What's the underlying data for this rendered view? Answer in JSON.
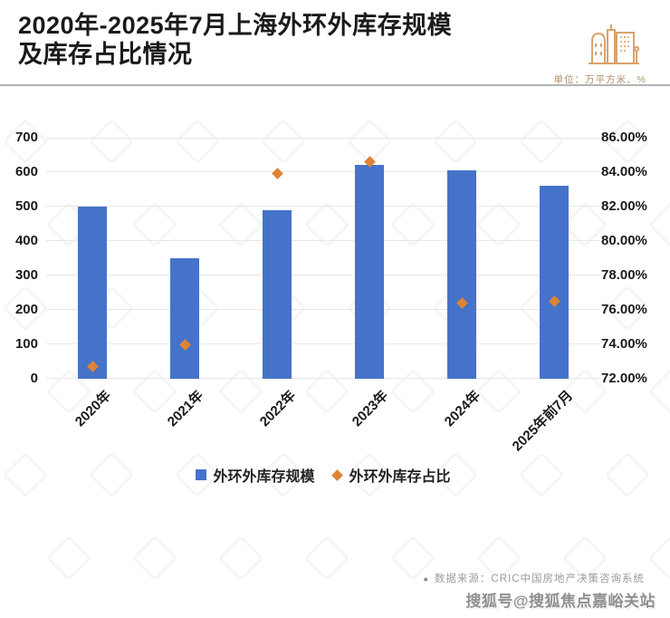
{
  "header": {
    "title_line1": "2020年-2025年7月上海外环外库存规模",
    "title_line2": "及库存占比情况",
    "unit_label": "单位：万平方米、%"
  },
  "chart_data": {
    "type": "bar",
    "title": "2020年-2025年7月上海外环外库存规模及库存占比情况",
    "categories": [
      "2020年",
      "2021年",
      "2022年",
      "2023年",
      "2024年",
      "2025年前7月"
    ],
    "series": [
      {
        "name": "外环外库存规模",
        "type": "bar",
        "axis": "left",
        "unit": "万平方米",
        "values": [
          500,
          350,
          490,
          620,
          605,
          560
        ]
      },
      {
        "name": "外环外库存占比",
        "type": "scatter",
        "axis": "right",
        "unit": "%",
        "values": [
          72.7,
          74.0,
          83.9,
          84.6,
          76.4,
          76.5
        ]
      }
    ],
    "left_axis": {
      "min": 0,
      "max": 700,
      "tick_step": 100,
      "tick_labels": [
        "0",
        "100",
        "200",
        "300",
        "400",
        "500",
        "600",
        "700"
      ]
    },
    "right_axis": {
      "min": 72,
      "max": 86,
      "tick_step": 2,
      "tick_labels": [
        "72.00%",
        "74.00%",
        "76.00%",
        "78.00%",
        "80.00%",
        "82.00%",
        "84.00%",
        "86.00%"
      ]
    },
    "grid": true,
    "legend_position": "bottom"
  },
  "footer": {
    "source_bullet": "●",
    "source_label": "数据来源：CRIC中国房地产决策咨询系统",
    "watermark_text": "搜狐号@搜狐焦点嘉峪关站"
  },
  "colors": {
    "bar": "#4573c9",
    "marker": "#dd8438",
    "accent_tan": "#d8a26e",
    "grid_line": "#e7e7e7",
    "title_text": "#1a1a1a",
    "source_text": "#9b9b9b",
    "sohu_text": "#8f8f8f"
  }
}
